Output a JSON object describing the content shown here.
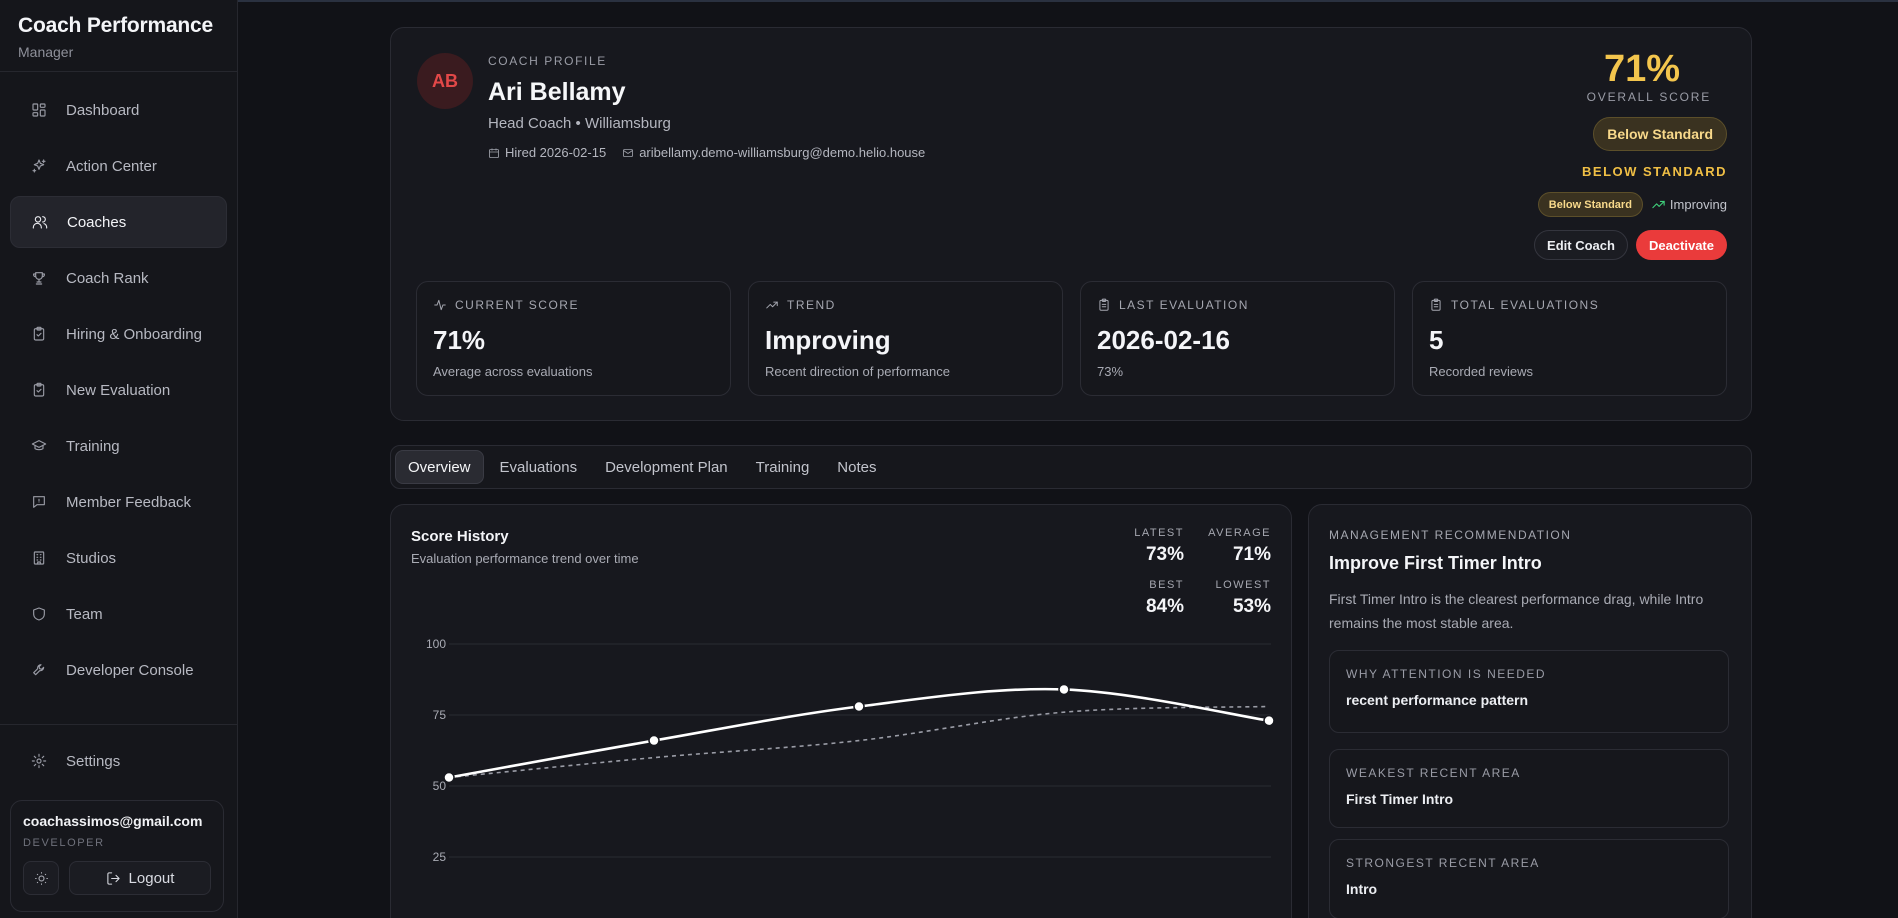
{
  "sidebar": {
    "brand_title": "Coach Performance",
    "brand_subtitle": "Manager",
    "items": [
      {
        "label": "Dashboard",
        "icon": "grid-icon"
      },
      {
        "label": "Action Center",
        "icon": "sparkles-icon"
      },
      {
        "label": "Coaches",
        "icon": "users-icon",
        "active": true
      },
      {
        "label": "Coach Rank",
        "icon": "trophy-icon"
      },
      {
        "label": "Hiring & Onboarding",
        "icon": "clipboard-check-icon"
      },
      {
        "label": "New Evaluation",
        "icon": "clipboard-check-icon"
      },
      {
        "label": "Training",
        "icon": "graduation-cap-icon"
      },
      {
        "label": "Member Feedback",
        "icon": "message-icon"
      },
      {
        "label": "Studios",
        "icon": "building-icon"
      },
      {
        "label": "Team",
        "icon": "shield-icon"
      },
      {
        "label": "Developer Console",
        "icon": "wrench-icon"
      }
    ],
    "settings_label": "Settings",
    "user": {
      "email": "coachassimos@gmail.com",
      "role": "DEVELOPER",
      "logout_label": "Logout"
    }
  },
  "profile": {
    "avatar_initials": "AB",
    "kicker": "COACH PROFILE",
    "name": "Ari Bellamy",
    "role_line": "Head Coach • Williamsburg",
    "hired": "Hired 2026-02-15",
    "email": "aribellamy.demo-williamsburg@demo.helio.house",
    "overall_score": "71%",
    "overall_label": "OVERALL SCORE",
    "status_pill": "Below Standard",
    "status_caps": "BELOW STANDARD",
    "mini_pill": "Below Standard",
    "trend_label": "Improving",
    "edit_label": "Edit Coach",
    "deactivate_label": "Deactivate",
    "accent_color": "#f3c54d",
    "danger_color": "#ea3b3b"
  },
  "stats": [
    {
      "label": "CURRENT SCORE",
      "value": "71%",
      "sub": "Average across evaluations",
      "icon": "activity-icon"
    },
    {
      "label": "TREND",
      "value": "Improving",
      "sub": "Recent direction of performance",
      "icon": "trending-up-icon"
    },
    {
      "label": "LAST EVALUATION",
      "value": "2026-02-16",
      "sub": "73%",
      "icon": "clipboard-icon"
    },
    {
      "label": "TOTAL EVALUATIONS",
      "value": "5",
      "sub": "Recorded reviews",
      "icon": "clipboard-icon"
    }
  ],
  "tabs": [
    "Overview",
    "Evaluations",
    "Development Plan",
    "Training",
    "Notes"
  ],
  "history": {
    "title": "Score History",
    "subtitle": "Evaluation performance trend over time",
    "latest_label": "LATEST",
    "latest": "73%",
    "average_label": "AVERAGE",
    "average": "71%",
    "best_label": "BEST",
    "best": "84%",
    "lowest_label": "LOWEST",
    "lowest": "53%"
  },
  "chart_data": {
    "type": "line",
    "x": [
      1,
      2,
      3,
      4,
      5
    ],
    "series": [
      {
        "values": [
          53,
          66,
          78,
          84,
          73
        ],
        "style": "solid",
        "markers": true
      },
      {
        "values": [
          53,
          60,
          66,
          76,
          78
        ],
        "style": "dashed"
      }
    ],
    "y_ticks": [
      100,
      75,
      50,
      25
    ],
    "ylim": [
      0,
      100
    ],
    "grid": true,
    "line_color": "#ffffff"
  },
  "recommendation": {
    "kicker": "MANAGEMENT RECOMMENDATION",
    "title": "Improve First Timer Intro",
    "description": "First Timer Intro is the clearest performance drag, while Intro remains the most stable area.",
    "boxes": [
      {
        "label": "WHY ATTENTION IS NEEDED",
        "value": "recent performance pattern"
      },
      {
        "label": "WEAKEST RECENT AREA",
        "value": "First Timer Intro"
      },
      {
        "label": "STRONGEST RECENT AREA",
        "value": "Intro"
      }
    ]
  }
}
